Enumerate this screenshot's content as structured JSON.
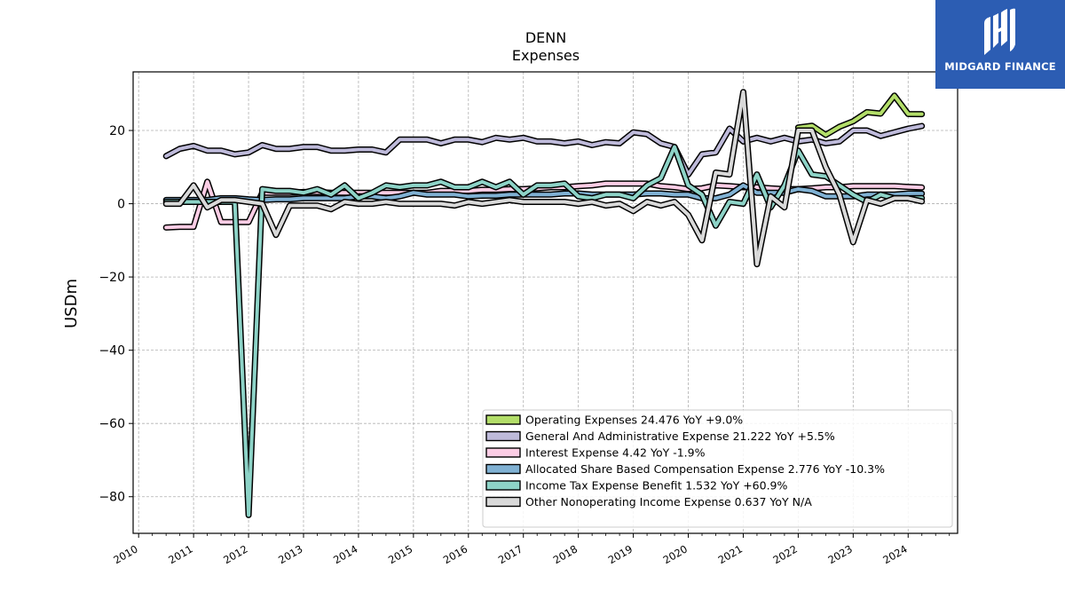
{
  "chart_data": {
    "type": "line",
    "title": "DENN",
    "subtitle": "Expenses",
    "ylabel": "USDm",
    "xlabel": "",
    "xlim": [
      2009.9,
      2024.9
    ],
    "ylim": [
      -90,
      36
    ],
    "yticks": [
      -80,
      -60,
      -40,
      -20,
      0,
      20
    ],
    "xticks": [
      "2010",
      "2011",
      "2012",
      "2013",
      "2014",
      "2015",
      "2016",
      "2017",
      "2018",
      "2019",
      "2020",
      "2021",
      "2022",
      "2023",
      "2024"
    ],
    "grid": true,
    "legend_position": "lower-right",
    "series": [
      {
        "name": "Operating Expenses  24.476 YoY +9.0%",
        "color": "#b3de69",
        "x": [
          2022.0,
          2022.25,
          2022.5,
          2022.75,
          2023.0,
          2023.25,
          2023.5,
          2023.75,
          2024.0,
          2024.25
        ],
        "y": [
          20.8,
          21.3,
          18.8,
          21.0,
          22.5,
          25.0,
          24.6,
          29.5,
          24.5,
          24.476
        ]
      },
      {
        "name": "General And Administrative Expense  21.222 YoY +5.5%",
        "color": "#bebada",
        "x": [
          2010.5,
          2010.75,
          2011.0,
          2011.25,
          2011.5,
          2011.75,
          2012.0,
          2012.25,
          2012.5,
          2012.75,
          2013.0,
          2013.25,
          2013.5,
          2013.75,
          2014.0,
          2014.25,
          2014.5,
          2014.75,
          2015.0,
          2015.25,
          2015.5,
          2015.75,
          2016.0,
          2016.25,
          2016.5,
          2016.75,
          2017.0,
          2017.25,
          2017.5,
          2017.75,
          2018.0,
          2018.25,
          2018.5,
          2018.75,
          2019.0,
          2019.25,
          2019.5,
          2019.75,
          2020.0,
          2020.25,
          2020.5,
          2020.75,
          2021.0,
          2021.25,
          2021.5,
          2021.75,
          2022.0,
          2022.25,
          2022.5,
          2022.75,
          2023.0,
          2023.25,
          2023.5,
          2023.75,
          2024.0,
          2024.25
        ],
        "y": [
          13.0,
          15.0,
          15.8,
          14.5,
          14.5,
          13.5,
          14.0,
          16.0,
          15.0,
          15.0,
          15.5,
          15.5,
          14.5,
          14.5,
          14.8,
          14.8,
          14.0,
          17.5,
          17.5,
          17.5,
          16.5,
          17.5,
          17.5,
          16.8,
          18.0,
          17.5,
          18.0,
          17.0,
          17.0,
          16.5,
          17.0,
          16.0,
          16.8,
          16.5,
          19.5,
          19.0,
          16.5,
          15.5,
          8.0,
          13.5,
          14.0,
          20.5,
          17.0,
          18.0,
          17.0,
          18.0,
          17.0,
          17.5,
          16.5,
          17.0,
          20.0,
          20.0,
          18.5,
          19.5,
          20.5,
          21.222
        ]
      },
      {
        "name": "Interest Expense  4.42 YoY -1.9%",
        "color": "#fccde5",
        "x": [
          2010.5,
          2010.75,
          2011.0,
          2011.25,
          2011.5,
          2011.75,
          2012.0,
          2012.25,
          2012.5,
          2012.75,
          2013.0,
          2013.25,
          2013.5,
          2013.75,
          2014.0,
          2014.25,
          2014.5,
          2014.75,
          2015.0,
          2015.25,
          2015.5,
          2015.75,
          2016.0,
          2016.25,
          2016.5,
          2016.75,
          2017.0,
          2017.25,
          2017.5,
          2017.75,
          2018.0,
          2018.25,
          2018.5,
          2018.75,
          2019.0,
          2019.25,
          2019.5,
          2019.75,
          2020.0,
          2020.25,
          2020.5,
          2020.75,
          2021.0,
          2021.25,
          2021.5,
          2021.75,
          2022.0,
          2022.25,
          2022.5,
          2022.75,
          2023.0,
          2023.25,
          2023.5,
          2023.75,
          2024.0,
          2024.25
        ],
        "y": [
          -6.5,
          -6.3,
          -6.3,
          6.0,
          -5.0,
          -5.0,
          -5.0,
          3.0,
          3.0,
          3.0,
          3.2,
          3.2,
          3.0,
          3.0,
          3.0,
          3.0,
          3.0,
          3.0,
          3.0,
          3.0,
          3.5,
          3.5,
          3.5,
          3.8,
          3.8,
          4.0,
          4.0,
          4.2,
          4.5,
          4.5,
          4.8,
          5.0,
          5.5,
          5.5,
          5.5,
          5.5,
          4.8,
          4.5,
          4.0,
          4.2,
          5.0,
          4.8,
          4.5,
          4.5,
          4.2,
          4.0,
          4.0,
          4.2,
          4.5,
          4.5,
          4.8,
          4.8,
          4.8,
          4.8,
          4.6,
          4.42
        ]
      },
      {
        "name": "Allocated Share Based Compensation Expense  2.776 YoY -10.3%",
        "color": "#80b1d3",
        "x": [
          2010.5,
          2010.75,
          2011.0,
          2011.25,
          2011.5,
          2011.75,
          2012.0,
          2012.25,
          2012.5,
          2012.75,
          2013.0,
          2013.25,
          2013.5,
          2013.75,
          2014.0,
          2014.25,
          2014.5,
          2014.75,
          2015.0,
          2015.25,
          2015.5,
          2015.75,
          2016.0,
          2016.25,
          2016.5,
          2016.75,
          2017.0,
          2017.25,
          2017.5,
          2017.75,
          2018.0,
          2018.25,
          2018.5,
          2018.75,
          2019.0,
          2019.25,
          2019.5,
          2019.75,
          2020.0,
          2020.25,
          2020.5,
          2020.75,
          2021.0,
          2021.25,
          2021.5,
          2021.75,
          2022.0,
          2022.25,
          2022.5,
          2022.75,
          2023.0,
          2023.25,
          2023.5,
          2023.75,
          2024.0,
          2024.25
        ],
        "y": [
          1.0,
          1.0,
          1.0,
          1.0,
          1.5,
          1.5,
          1.2,
          1.0,
          1.2,
          1.2,
          1.5,
          1.5,
          1.5,
          1.5,
          2.0,
          2.0,
          1.5,
          2.0,
          3.0,
          2.5,
          2.5,
          2.5,
          2.0,
          2.2,
          2.2,
          2.5,
          2.5,
          2.5,
          2.5,
          2.8,
          2.8,
          2.5,
          2.5,
          2.5,
          2.5,
          2.8,
          2.8,
          2.5,
          2.5,
          1.5,
          1.5,
          2.5,
          5.0,
          3.0,
          3.0,
          3.0,
          4.0,
          3.5,
          2.0,
          2.0,
          2.0,
          2.5,
          2.5,
          2.5,
          2.8,
          2.776
        ]
      },
      {
        "name": "Income Tax Expense Benefit  1.532 YoY +60.9%",
        "color": "#8dd3c7",
        "x": [
          2010.5,
          2010.75,
          2011.0,
          2011.25,
          2011.5,
          2011.75,
          2012.0,
          2012.25,
          2012.5,
          2012.75,
          2013.0,
          2013.25,
          2013.5,
          2013.75,
          2014.0,
          2014.25,
          2014.5,
          2014.75,
          2015.0,
          2015.25,
          2015.5,
          2015.75,
          2016.0,
          2016.25,
          2016.5,
          2016.75,
          2017.0,
          2017.25,
          2017.5,
          2017.75,
          2018.0,
          2018.25,
          2018.5,
          2018.75,
          2019.0,
          2019.25,
          2019.5,
          2019.75,
          2020.0,
          2020.25,
          2020.5,
          2020.75,
          2021.0,
          2021.25,
          2021.5,
          2021.75,
          2022.0,
          2022.25,
          2022.5,
          2022.75,
          2023.0,
          2023.25,
          2023.5,
          2023.75,
          2024.0,
          2024.25
        ],
        "y": [
          0.5,
          0.5,
          0.5,
          0.5,
          0.5,
          0.5,
          -85.0,
          4.0,
          3.5,
          3.5,
          3.0,
          4.0,
          2.5,
          5.0,
          1.5,
          3.0,
          5.0,
          4.5,
          5.0,
          5.0,
          6.0,
          4.5,
          4.5,
          6.0,
          4.5,
          6.0,
          2.5,
          5.0,
          5.0,
          5.5,
          2.0,
          1.5,
          2.5,
          2.5,
          1.5,
          5.0,
          7.0,
          15.5,
          5.0,
          2.5,
          -6.0,
          0.5,
          0.0,
          8.0,
          -1.0,
          5.0,
          14.5,
          8.0,
          7.5,
          5.0,
          2.5,
          0.5,
          2.5,
          1.5,
          1.5,
          1.532
        ]
      },
      {
        "name": "Other Nonoperating Income Expense  0.637 YoY N/A",
        "color": "#d9d9d9",
        "x": [
          2010.5,
          2010.75,
          2011.0,
          2011.25,
          2011.5,
          2011.75,
          2012.0,
          2012.25,
          2012.5,
          2012.75,
          2013.0,
          2013.25,
          2013.5,
          2013.75,
          2014.0,
          2014.25,
          2014.5,
          2014.75,
          2015.0,
          2015.25,
          2015.5,
          2015.75,
          2016.0,
          2016.25,
          2016.5,
          2016.75,
          2017.0,
          2017.25,
          2017.5,
          2017.75,
          2018.0,
          2018.25,
          2018.5,
          2018.75,
          2019.0,
          2019.25,
          2019.5,
          2019.75,
          2020.0,
          2020.25,
          2020.5,
          2020.75,
          2021.0,
          2021.25,
          2021.5,
          2021.75,
          2022.0,
          2022.25,
          2022.5,
          2022.75,
          2023.0,
          2023.25,
          2023.5,
          2023.75,
          2024.0,
          2024.25
        ],
        "y": [
          0.0,
          0.0,
          5.0,
          -1.0,
          1.0,
          1.0,
          0.5,
          0.0,
          -8.5,
          -0.5,
          -0.5,
          -0.5,
          -1.5,
          0.5,
          0.0,
          0.0,
          0.5,
          0.0,
          0.0,
          0.0,
          0.0,
          -0.5,
          0.5,
          0.0,
          0.5,
          1.0,
          0.5,
          0.5,
          0.5,
          0.5,
          0.0,
          0.5,
          -0.5,
          0.0,
          -2.0,
          0.5,
          -0.5,
          0.5,
          -3.0,
          -10.0,
          8.5,
          8.0,
          30.5,
          -16.5,
          2.0,
          -1.0,
          20.0,
          20.0,
          10.0,
          2.5,
          -10.5,
          1.0,
          0.0,
          1.5,
          1.5,
          0.637
        ]
      }
    ]
  },
  "brand": {
    "name": "MIDGARD FINANCE",
    "bg_color": "#2c5db3",
    "icon": "midgard-logo-icon"
  }
}
